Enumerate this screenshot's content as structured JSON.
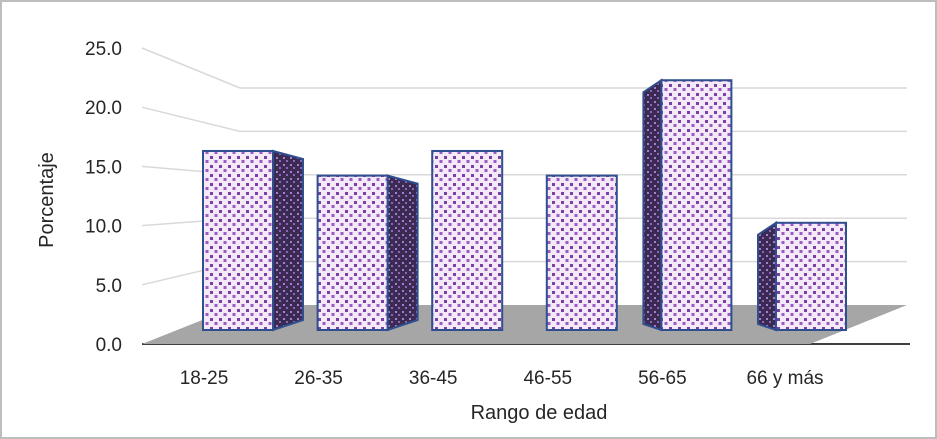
{
  "chart_data": {
    "type": "bar",
    "title": "",
    "xlabel": "Rango de edad",
    "ylabel": "Porcentaje",
    "categories": [
      "18-25",
      "26-35",
      "36-45",
      "46-55",
      "56-65",
      "66 y más"
    ],
    "values": [
      16.7,
      14.4,
      16.7,
      14.4,
      23.3,
      10.0
    ],
    "ylim": [
      0,
      25
    ],
    "yticks": [
      "0.0",
      "5.0",
      "10.0",
      "15.0",
      "20.0",
      "25.0"
    ],
    "grid": true,
    "legend": "none",
    "style": "3d",
    "colors": {
      "bar_front": "#f3e9f7",
      "bar_dots": "#7a3fa6",
      "bar_side": "#3b2a52",
      "bar_edge": "#2f4f8f",
      "floor": "#a6a6a6",
      "gridline": "#d9d9d9"
    }
  }
}
